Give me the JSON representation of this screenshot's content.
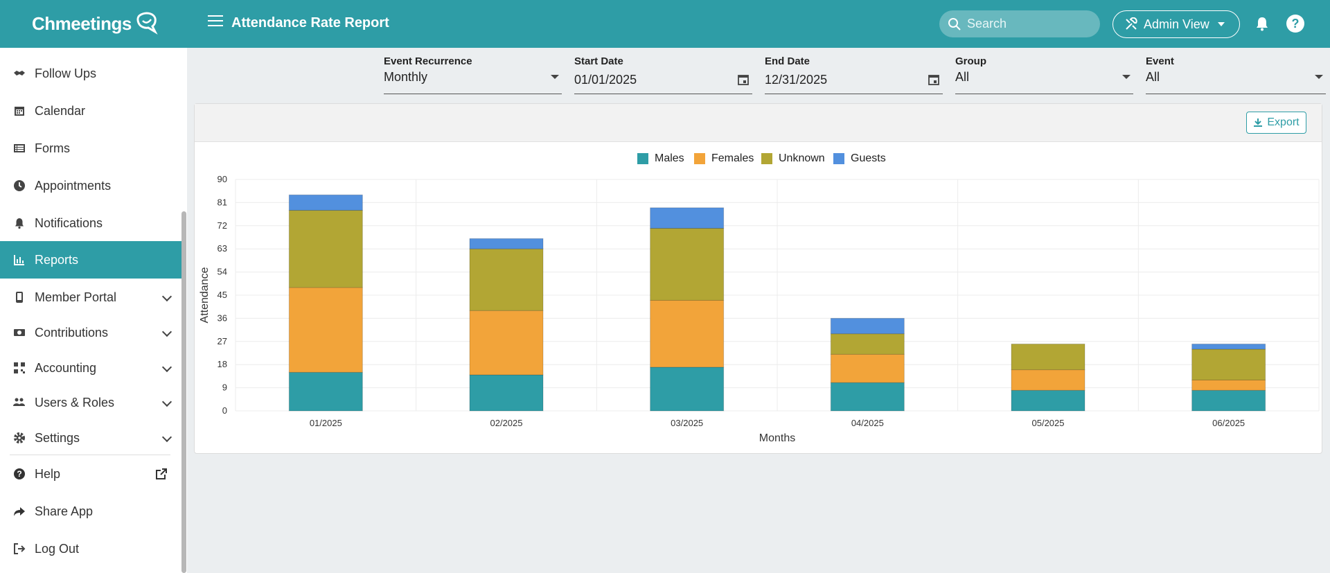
{
  "app": {
    "logo_text": "Chmeetings",
    "page_title": "Attendance Rate Report"
  },
  "header": {
    "search_placeholder": "Search",
    "admin_view_label": "Admin View",
    "help_label": "?"
  },
  "sidebar": {
    "items": [
      {
        "label": "Follow Ups",
        "icon": "handshake-icon"
      },
      {
        "label": "Calendar",
        "icon": "calendar-icon"
      },
      {
        "label": "Forms",
        "icon": "list-icon"
      },
      {
        "label": "Appointments",
        "icon": "clock-icon"
      },
      {
        "label": "Notifications",
        "icon": "bell-icon"
      },
      {
        "label": "Reports",
        "icon": "chart-icon",
        "active": true
      },
      {
        "label": "Member Portal",
        "icon": "phone-icon",
        "expandable": true
      },
      {
        "label": "Contributions",
        "icon": "money-icon",
        "expandable": true
      },
      {
        "label": "Accounting",
        "icon": "qr-icon",
        "expandable": true
      },
      {
        "label": "Users & Roles",
        "icon": "users-icon",
        "expandable": true
      },
      {
        "label": "Settings",
        "icon": "gear-icon",
        "expandable": true
      },
      {
        "label": "Help",
        "icon": "question-icon",
        "external": true
      },
      {
        "label": "Share App",
        "icon": "share-icon"
      },
      {
        "label": "Log Out",
        "icon": "logout-icon"
      }
    ]
  },
  "filters": {
    "recurrence": {
      "label": "Event Recurrence",
      "value": "Monthly"
    },
    "start_date": {
      "label": "Start Date",
      "value": "01/01/2025"
    },
    "end_date": {
      "label": "End Date",
      "value": "12/31/2025"
    },
    "group": {
      "label": "Group",
      "value": "All"
    },
    "event": {
      "label": "Event",
      "value": "All"
    }
  },
  "card": {
    "export_label": "Export"
  },
  "colors": {
    "brand": "#2e9da6",
    "males": "#2e9da6",
    "females": "#f2a43a",
    "unknown": "#b2a634",
    "guests": "#5290de"
  },
  "chart_data": {
    "type": "bar",
    "stacked": true,
    "categories": [
      "01/2025",
      "02/2025",
      "03/2025",
      "04/2025",
      "05/2025",
      "06/2025"
    ],
    "series": [
      {
        "name": "Males",
        "values": [
          15,
          14,
          17,
          11,
          8,
          8
        ]
      },
      {
        "name": "Females",
        "values": [
          33,
          25,
          26,
          11,
          8,
          4
        ]
      },
      {
        "name": "Unknown",
        "values": [
          30,
          24,
          28,
          8,
          10,
          12
        ]
      },
      {
        "name": "Guests",
        "values": [
          6,
          4,
          8,
          6,
          0,
          2
        ]
      }
    ],
    "xlabel": "Months",
    "ylabel": "Attendance",
    "ylim": [
      0,
      90
    ],
    "yticks": [
      0,
      9,
      18,
      27,
      36,
      45,
      54,
      63,
      72,
      81,
      90
    ],
    "grid": true,
    "legend_position": "top"
  }
}
